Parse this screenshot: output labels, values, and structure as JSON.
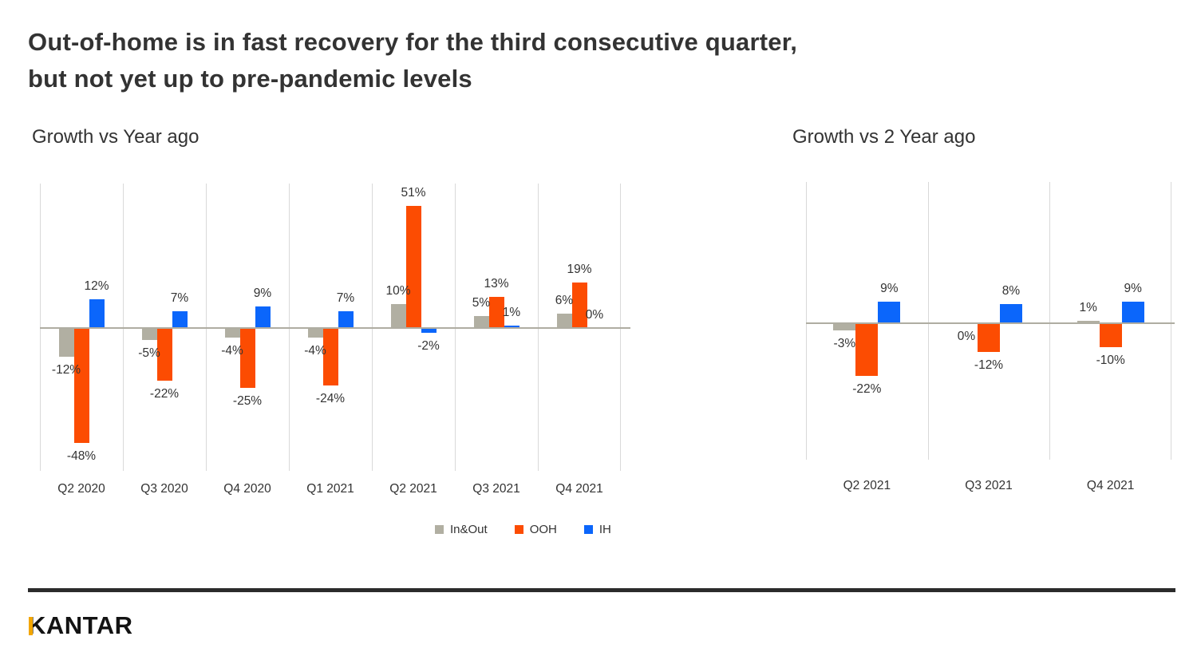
{
  "header": {
    "title": "Out-of-home is in fast recovery for the third consecutive quarter,\nbut not yet up to pre-pandemic levels"
  },
  "chart_data": [
    {
      "type": "bar",
      "title": "Growth vs Year ago",
      "categories": [
        "Q2 2020",
        "Q3 2020",
        "Q4 2020",
        "Q1 2021",
        "Q2 2021",
        "Q3 2021",
        "Q4 2021"
      ],
      "series": [
        {
          "name": "In&Out",
          "color": "#B1AFA2",
          "values": [
            -12,
            -5,
            -4,
            -4,
            10,
            5,
            6
          ]
        },
        {
          "name": "OOH",
          "color": "#FC4C02",
          "values": [
            -48,
            -22,
            -25,
            -24,
            51,
            13,
            19
          ]
        },
        {
          "name": "IH",
          "color": "#0B66FB",
          "values": [
            12,
            7,
            9,
            7,
            -2,
            1,
            0
          ]
        }
      ],
      "value_label_format": "{v}%",
      "ylabel": "",
      "xlabel": "",
      "ylim": [
        -60,
        60
      ],
      "grid": "vertical-only",
      "legend_position": "bottom"
    },
    {
      "type": "bar",
      "title": "Growth vs 2 Year ago",
      "categories": [
        "Q2 2021",
        "Q3 2021",
        "Q4 2021"
      ],
      "series": [
        {
          "name": "In&Out",
          "color": "#B1AFA2",
          "values": [
            -3,
            0,
            1
          ]
        },
        {
          "name": "OOH",
          "color": "#FC4C02",
          "values": [
            -22,
            -12,
            -10
          ]
        },
        {
          "name": "IH",
          "color": "#0B66FB",
          "values": [
            9,
            8,
            9
          ]
        }
      ],
      "value_label_format": "{v}%",
      "ylabel": "",
      "xlabel": "",
      "ylim": [
        -60,
        60
      ],
      "grid": "vertical-only",
      "legend_position": "none"
    }
  ],
  "legend": {
    "items": [
      {
        "label": "In&Out",
        "color": "#B1AFA2"
      },
      {
        "label": "OOH",
        "color": "#FC4C02"
      },
      {
        "label": "IH",
        "color": "#0B66FB"
      }
    ]
  },
  "footer": {
    "logo_text": "KANTAR"
  },
  "colors": {
    "bar_inout": "#B1AFA2",
    "bar_ooh": "#FC4C02",
    "bar_ih": "#0B66FB",
    "zero_axis": "#AFADA2",
    "gridline": "#D9D9D9",
    "text": "#333333",
    "divider": "#2B2B2B",
    "logo_gold": "#F3A600"
  }
}
